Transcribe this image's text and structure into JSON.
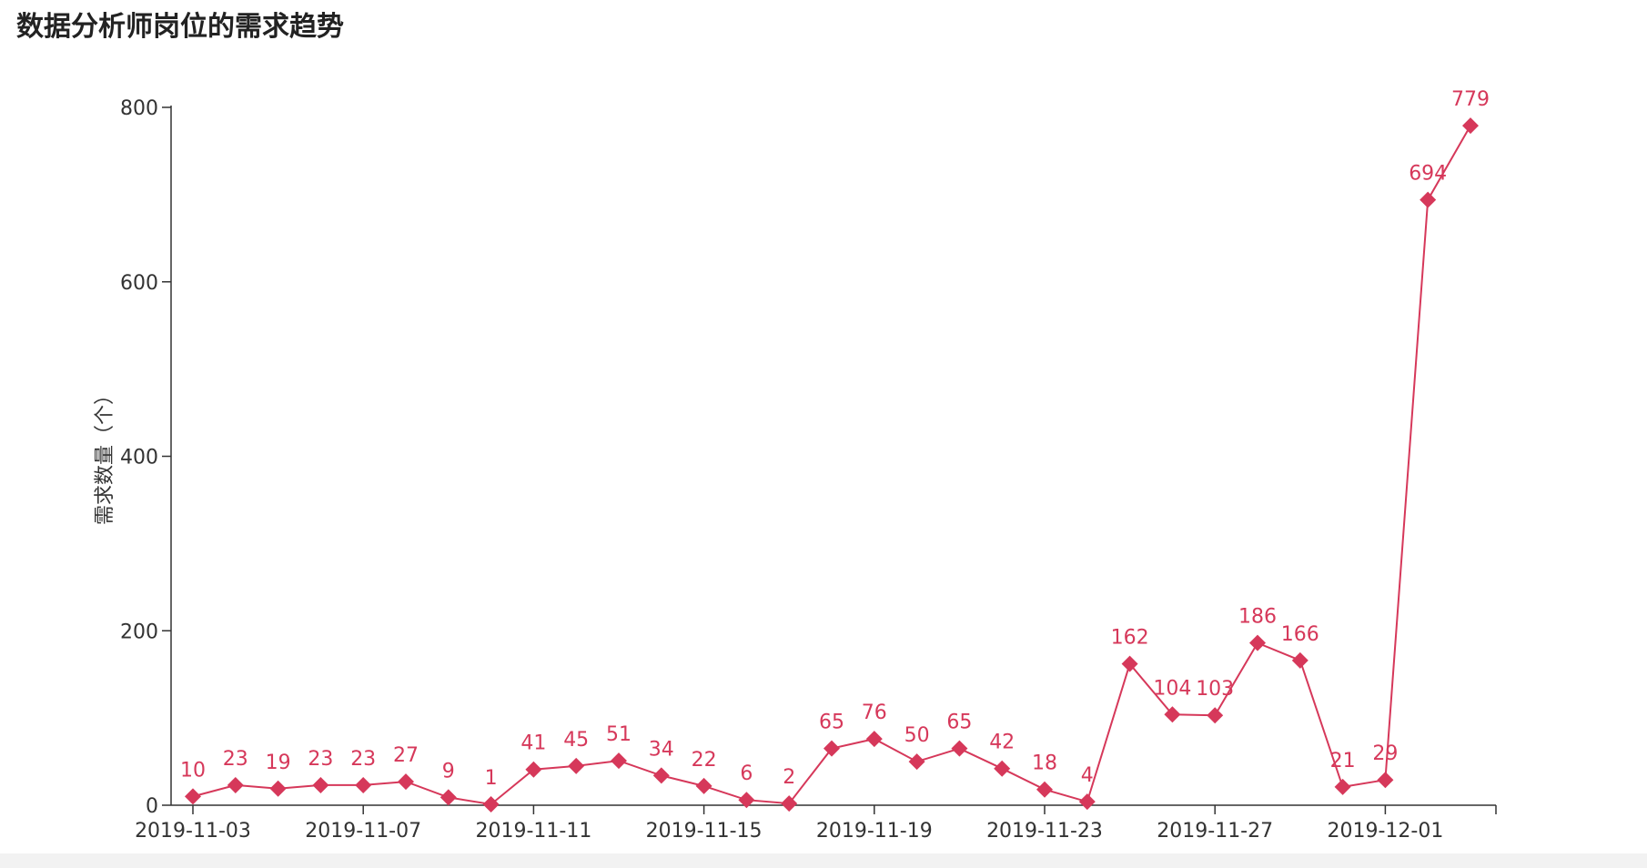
{
  "chart_data": {
    "type": "line",
    "title": "数据分析师岗位的需求趋势",
    "xlabel": "",
    "ylabel": "需求数量（个）",
    "ylim": [
      0,
      800
    ],
    "yticks": [
      "0",
      "200",
      "400",
      "600",
      "800"
    ],
    "xtick_labels": [
      "2019-11-03",
      "2019-11-07",
      "2019-11-11",
      "2019-11-15",
      "2019-11-19",
      "2019-11-23",
      "2019-11-27",
      "2019-12-01"
    ],
    "grid": false,
    "legend": "none",
    "color": "#d6385a",
    "x": [
      "2019-11-03",
      "2019-11-04",
      "2019-11-05",
      "2019-11-06",
      "2019-11-07",
      "2019-11-08",
      "2019-11-09",
      "2019-11-10",
      "2019-11-11",
      "2019-11-12",
      "2019-11-13",
      "2019-11-14",
      "2019-11-15",
      "2019-11-16",
      "2019-11-17",
      "2019-11-18",
      "2019-11-19",
      "2019-11-20",
      "2019-11-21",
      "2019-11-22",
      "2019-11-23",
      "2019-11-24",
      "2019-11-25",
      "2019-11-26",
      "2019-11-27",
      "2019-11-28",
      "2019-11-29",
      "2019-11-30",
      "2019-12-01",
      "2019-12-02",
      "2019-12-03"
    ],
    "values": [
      10,
      23,
      19,
      23,
      23,
      27,
      9,
      1,
      41,
      45,
      51,
      34,
      22,
      6,
      2,
      65,
      76,
      50,
      65,
      42,
      18,
      4,
      162,
      104,
      103,
      186,
      166,
      21,
      29,
      694,
      779
    ]
  }
}
